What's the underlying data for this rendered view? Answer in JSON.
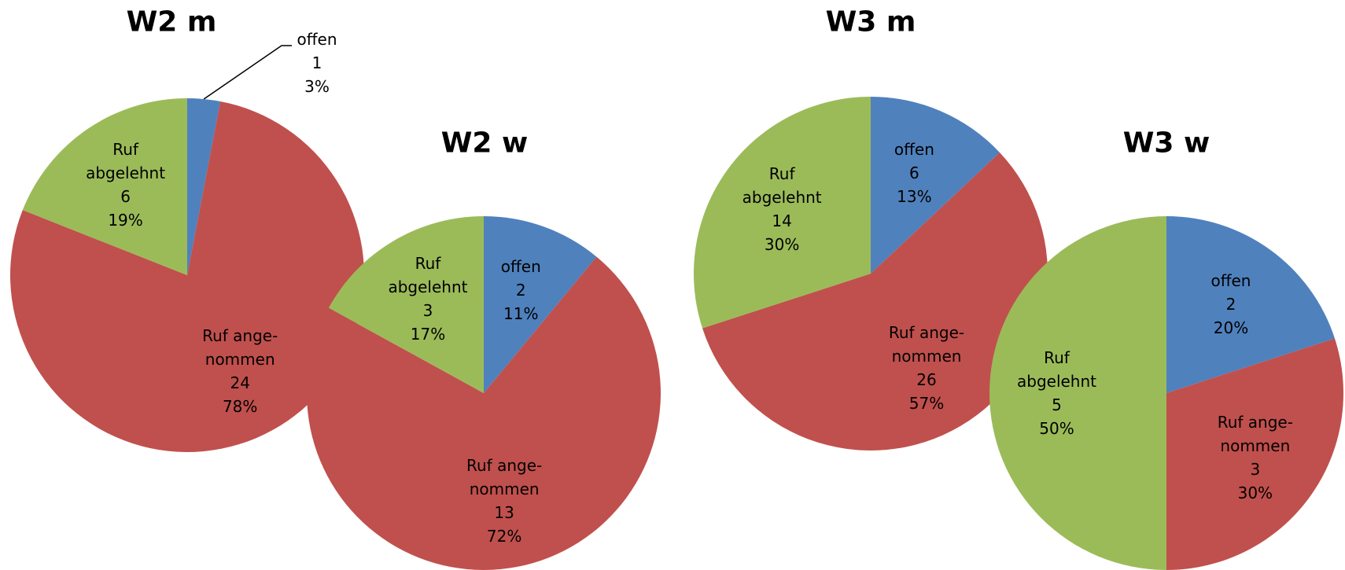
{
  "chart_data": [
    {
      "type": "pie",
      "title": "W2 m",
      "categories": [
        "offen",
        "Ruf ange-\nnommen",
        "Ruf\nabgelehnt"
      ],
      "counts": [
        1,
        24,
        6
      ],
      "values": [
        3,
        78,
        19
      ],
      "colors": [
        "#4f81bd",
        "#c0504d",
        "#9bbb59"
      ]
    },
    {
      "type": "pie",
      "title": "W2 w",
      "categories": [
        "offen",
        "Ruf ange-\nnommen",
        "Ruf\nabgelehnt"
      ],
      "counts": [
        2,
        13,
        3
      ],
      "values": [
        11,
        72,
        17
      ],
      "colors": [
        "#4f81bd",
        "#c0504d",
        "#9bbb59"
      ]
    },
    {
      "type": "pie",
      "title": "W3 m",
      "categories": [
        "offen",
        "Ruf ange-\nnommen",
        "Ruf\nabgelehnt"
      ],
      "counts": [
        6,
        26,
        14
      ],
      "values": [
        13,
        57,
        30
      ],
      "colors": [
        "#4f81bd",
        "#c0504d",
        "#9bbb59"
      ]
    },
    {
      "type": "pie",
      "title": "W3 w",
      "categories": [
        "offen",
        "Ruf ange-\nnommen",
        "Ruf\nabgelehnt"
      ],
      "counts": [
        2,
        3,
        5
      ],
      "values": [
        20,
        30,
        50
      ],
      "colors": [
        "#4f81bd",
        "#c0504d",
        "#9bbb59"
      ]
    }
  ]
}
